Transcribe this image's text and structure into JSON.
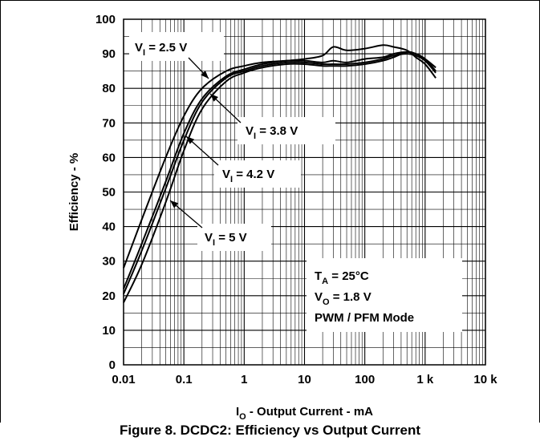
{
  "caption": "Figure 8. DCDC2: Efficiency vs Output Current",
  "chart_data": {
    "type": "line",
    "xscale": "log",
    "xlim": [
      0.01,
      10000
    ],
    "ylim": [
      0,
      100
    ],
    "xticks": [
      0.01,
      0.1,
      1,
      10,
      100,
      1000,
      10000
    ],
    "xtick_labels": [
      "0.01",
      "0.1",
      "1",
      "10",
      "100",
      "1 k",
      "10 k"
    ],
    "yticks": [
      0,
      10,
      20,
      30,
      40,
      50,
      60,
      70,
      80,
      90,
      100
    ],
    "ytick_labels": [
      "0",
      "10",
      "20",
      "30",
      "40",
      "50",
      "60",
      "70",
      "80",
      "90",
      "100"
    ],
    "xlabel": {
      "main": "I",
      "sub": "O",
      "rest": " - Output Current - mA"
    },
    "ylabel": "Efficiency - %",
    "grid": true,
    "series": [
      {
        "label": {
          "main": "V",
          "sub": "I",
          "rest": " = 2.5 V"
        },
        "x": [
          0.01,
          0.02,
          0.05,
          0.1,
          0.2,
          0.5,
          1,
          2,
          5,
          10,
          20,
          30,
          50,
          100,
          200,
          300,
          500,
          700,
          1000,
          1500
        ],
        "y": [
          28,
          42,
          60,
          72,
          80,
          85,
          86.5,
          87.5,
          88,
          88.5,
          89.5,
          92,
          91,
          91.5,
          92.5,
          92,
          91,
          89,
          87,
          83
        ]
      },
      {
        "label": {
          "main": "V",
          "sub": "I",
          "rest": " = 3.8 V"
        },
        "x": [
          0.01,
          0.02,
          0.05,
          0.1,
          0.2,
          0.5,
          1,
          2,
          5,
          10,
          20,
          30,
          50,
          100,
          200,
          300,
          500,
          700,
          1000,
          1500
        ],
        "y": [
          22,
          35,
          53,
          67,
          77,
          83.5,
          85.5,
          87,
          88,
          88,
          87.5,
          88,
          87.5,
          88.5,
          89,
          90,
          90.5,
          90,
          88.5,
          85
        ]
      },
      {
        "label": {
          "main": "V",
          "sub": "I",
          "rest": " = 4.2 V"
        },
        "x": [
          0.01,
          0.02,
          0.05,
          0.1,
          0.2,
          0.5,
          1,
          2,
          5,
          10,
          20,
          30,
          50,
          100,
          200,
          300,
          500,
          700,
          1000,
          1500
        ],
        "y": [
          20.5,
          33,
          51,
          65,
          76,
          83,
          85,
          86.5,
          87.5,
          87.5,
          87,
          87,
          87,
          87.5,
          88.5,
          89.5,
          90,
          89.5,
          88,
          84.5
        ]
      },
      {
        "label": {
          "main": "V",
          "sub": "I",
          "rest": " = 5 V"
        },
        "x": [
          0.01,
          0.02,
          0.05,
          0.1,
          0.2,
          0.5,
          1,
          2,
          5,
          10,
          20,
          30,
          50,
          100,
          200,
          300,
          500,
          700,
          1000,
          1500
        ],
        "y": [
          18,
          29,
          47,
          62,
          74,
          82,
          84.5,
          86,
          87,
          87,
          86.5,
          86.5,
          86.5,
          87,
          88,
          89,
          90.5,
          90,
          88.5,
          86
        ]
      }
    ],
    "annotations": [
      {
        "main": "T",
        "sub": "A",
        "rest": " = 25°C"
      },
      {
        "main": "V",
        "sub": "O",
        "rest": " = 1.8 V"
      },
      {
        "main": "PWM / PFM  Mode",
        "sub": "",
        "rest": ""
      }
    ]
  }
}
